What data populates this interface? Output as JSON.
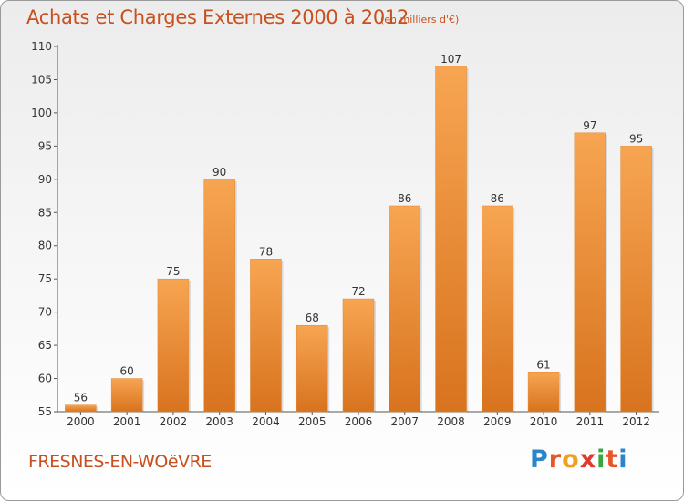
{
  "header": {
    "title": "Achats et Charges Externes 2000 à 2012",
    "unit": "(en milliers d'€)"
  },
  "footer": {
    "commune": "FRESNES-EN-WOëVRE"
  },
  "logo": {
    "letters": [
      {
        "char": "P",
        "color": "#2a86c8"
      },
      {
        "char": "r",
        "color": "#e8552a"
      },
      {
        "char": "o",
        "color": "#f0a020"
      },
      {
        "char": "x",
        "color": "#e23a2a"
      },
      {
        "char": "i",
        "color": "#3aa640"
      },
      {
        "char": "t",
        "color": "#e8552a"
      },
      {
        "char": "i",
        "color": "#2a86c8"
      }
    ]
  },
  "chart_data": {
    "type": "bar",
    "title": "Achats et Charges Externes 2000 à 2012",
    "categories": [
      "2000",
      "2001",
      "2002",
      "2003",
      "2004",
      "2005",
      "2006",
      "2007",
      "2008",
      "2009",
      "2010",
      "2011",
      "2012"
    ],
    "values": [
      56,
      60,
      75,
      90,
      78,
      68,
      72,
      86,
      107,
      86,
      61,
      97,
      95
    ],
    "ylim": [
      55,
      110
    ],
    "yticks": [
      55,
      60,
      65,
      70,
      75,
      80,
      85,
      90,
      95,
      100,
      105,
      110
    ],
    "grid": false,
    "bar_color": "#f0902e"
  }
}
